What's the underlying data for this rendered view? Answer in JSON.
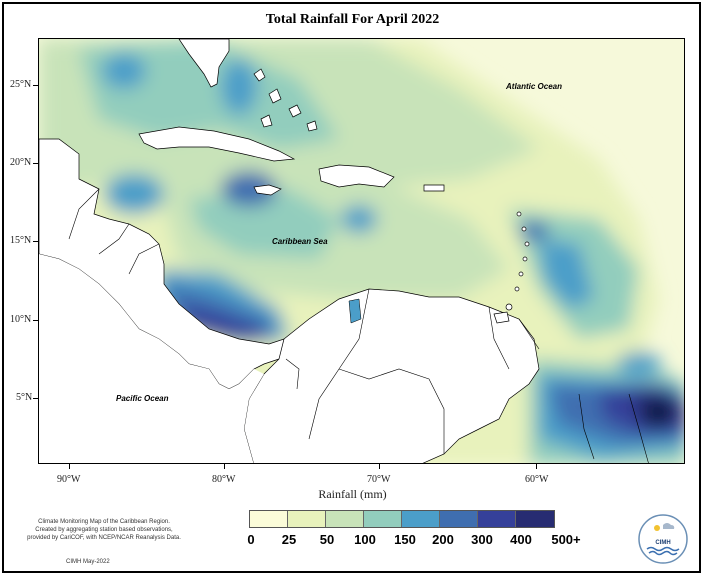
{
  "title": "Total Rainfall For April 2022",
  "axes": {
    "lat_labels": [
      "25°N",
      "20°N",
      "15°N",
      "10°N",
      "5°N"
    ],
    "lon_labels": [
      "90°W",
      "80°W",
      "70°W",
      "60°W"
    ]
  },
  "labels": {
    "atlantic": "Atlantic Ocean",
    "caribbean": "Caribbean Sea",
    "pacific": "Pacific Ocean"
  },
  "legend": {
    "title": "Rainfall (mm)",
    "values": [
      "0",
      "25",
      "50",
      "100",
      "150",
      "200",
      "300",
      "400",
      "500+"
    ],
    "colors": [
      "#fbfcd9",
      "#e8f2bc",
      "#c8e3b9",
      "#92cdbd",
      "#4b9ec9",
      "#3f6eb0",
      "#35409a",
      "#272c72",
      "#081d45"
    ]
  },
  "footnote": {
    "line1": "Climate Monitoring Map of the Caribbean Region.",
    "line2": "Created by aggregating station based observations,",
    "line3": "provided by CariCOF, with NCEP/NCAR Reanalysis Data.",
    "date": "CIMH May-2022"
  },
  "logo": {
    "text": "CIMH"
  }
}
